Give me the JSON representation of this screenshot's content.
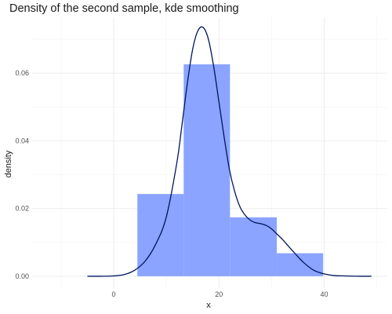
{
  "chart_data": {
    "type": "histogram",
    "title": "Density of the second sample, kde smoothing",
    "xlabel": "x",
    "ylabel": "density",
    "xlim": [
      -15.5,
      52
    ],
    "ylim": [
      -0.0035,
      0.0765
    ],
    "x_ticks": [
      0,
      20,
      40
    ],
    "y_ticks": [
      0.0,
      0.02,
      0.04,
      0.06
    ],
    "y_tick_labels": [
      "0.00",
      "0.02",
      "0.04",
      "0.06"
    ],
    "grid": true,
    "series": [
      {
        "type": "bar",
        "color": "#8aa4ff",
        "bins": [
          {
            "x0": 4.5,
            "x1": 13.3,
            "density": 0.0243
          },
          {
            "x0": 13.3,
            "x1": 22.1,
            "density": 0.0626
          },
          {
            "x0": 22.1,
            "x1": 31,
            "density": 0.0174
          },
          {
            "x0": 31,
            "x1": 39.8,
            "density": 0.0068
          }
        ]
      },
      {
        "type": "line",
        "color": "#00155c",
        "x": [
          -5,
          -2,
          0,
          2,
          4,
          6,
          8,
          10,
          12,
          13,
          14,
          15,
          16,
          17,
          18,
          19,
          20,
          21,
          22,
          23,
          24,
          25,
          26,
          27,
          28,
          29,
          30,
          31,
          32,
          34,
          36,
          38,
          40,
          42,
          44,
          46,
          49
        ],
        "y": [
          0,
          0,
          0.0001,
          0.0005,
          0.0018,
          0.0045,
          0.0095,
          0.0175,
          0.0335,
          0.045,
          0.057,
          0.067,
          0.0725,
          0.0735,
          0.07,
          0.062,
          0.0515,
          0.041,
          0.0315,
          0.025,
          0.0205,
          0.018,
          0.0165,
          0.0158,
          0.0155,
          0.015,
          0.014,
          0.0125,
          0.011,
          0.0075,
          0.0042,
          0.0018,
          0.0007,
          0.0002,
          0.0001,
          0,
          0
        ]
      }
    ]
  }
}
